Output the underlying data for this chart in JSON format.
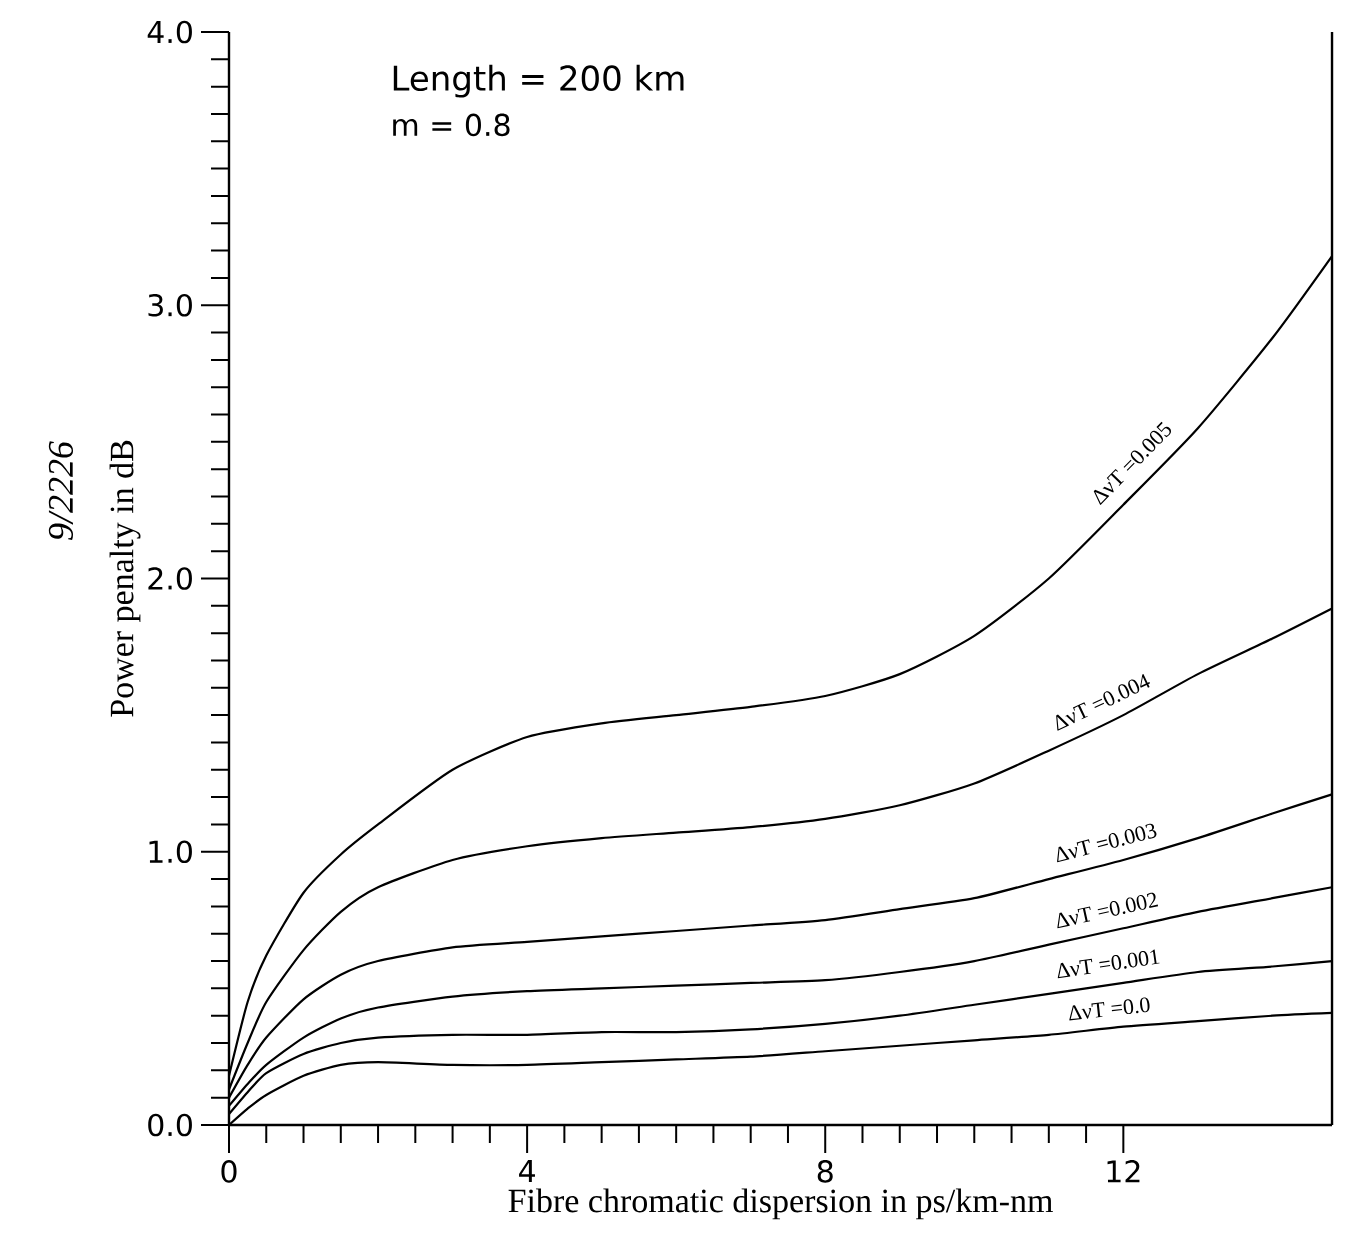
{
  "chart_data": {
    "type": "line",
    "xlabel": "Fibre chromatic dispersion in ps/km-nm",
    "ylabel": "Power penalty in dB",
    "annotations": [
      "Length  =  200  km",
      "m  =  0.8",
      "9/2226"
    ],
    "x": [
      0,
      0.25,
      0.5,
      1,
      1.5,
      2,
      3,
      4,
      5,
      6,
      7,
      8,
      9,
      10,
      11,
      12,
      13,
      14,
      14.8
    ],
    "series": [
      {
        "name": "ΔνT =0.005",
        "color": "#000000",
        "values": [
          0.18,
          0.45,
          0.62,
          0.85,
          0.99,
          1.1,
          1.3,
          1.42,
          1.47,
          1.5,
          1.53,
          1.57,
          1.65,
          1.79,
          2.0,
          2.27,
          2.55,
          2.88,
          3.18
        ]
      },
      {
        "name": "ΔνT =0.004",
        "color": "#000000",
        "values": [
          0.13,
          0.3,
          0.45,
          0.64,
          0.78,
          0.87,
          0.97,
          1.02,
          1.05,
          1.07,
          1.09,
          1.12,
          1.17,
          1.25,
          1.37,
          1.5,
          1.65,
          1.78,
          1.89
        ]
      },
      {
        "name": "ΔνT =0.003",
        "color": "#000000",
        "values": [
          0.1,
          0.22,
          0.32,
          0.46,
          0.55,
          0.6,
          0.65,
          0.67,
          0.69,
          0.71,
          0.73,
          0.75,
          0.79,
          0.83,
          0.9,
          0.97,
          1.05,
          1.14,
          1.21
        ]
      },
      {
        "name": "ΔνT =0.002",
        "color": "#000000",
        "values": [
          0.07,
          0.15,
          0.22,
          0.32,
          0.39,
          0.43,
          0.47,
          0.49,
          0.5,
          0.51,
          0.52,
          0.53,
          0.56,
          0.6,
          0.66,
          0.72,
          0.78,
          0.83,
          0.87
        ]
      },
      {
        "name": "ΔνT =0.001",
        "color": "#000000",
        "values": [
          0.04,
          0.12,
          0.19,
          0.26,
          0.3,
          0.32,
          0.33,
          0.33,
          0.34,
          0.34,
          0.35,
          0.37,
          0.4,
          0.44,
          0.48,
          0.52,
          0.56,
          0.58,
          0.6
        ]
      },
      {
        "name": "ΔνT =0.0",
        "color": "#000000",
        "values": [
          0.0,
          0.06,
          0.11,
          0.18,
          0.22,
          0.23,
          0.22,
          0.22,
          0.23,
          0.24,
          0.25,
          0.27,
          0.29,
          0.31,
          0.33,
          0.36,
          0.38,
          0.4,
          0.41
        ]
      }
    ],
    "xlim": [
      0,
      14.8
    ],
    "xticks": [
      0,
      4,
      8,
      12
    ],
    "ylim": [
      0,
      4
    ],
    "yticks": [
      {
        "value": 0,
        "label": "0.0"
      },
      {
        "value": 1,
        "label": "1.0"
      },
      {
        "value": 2,
        "label": "2.0"
      },
      {
        "value": 3,
        "label": "3.0"
      },
      {
        "value": 4,
        "label": "4.0"
      }
    ],
    "grid": false,
    "legend": false,
    "marker": "none",
    "line_style": "solid"
  }
}
